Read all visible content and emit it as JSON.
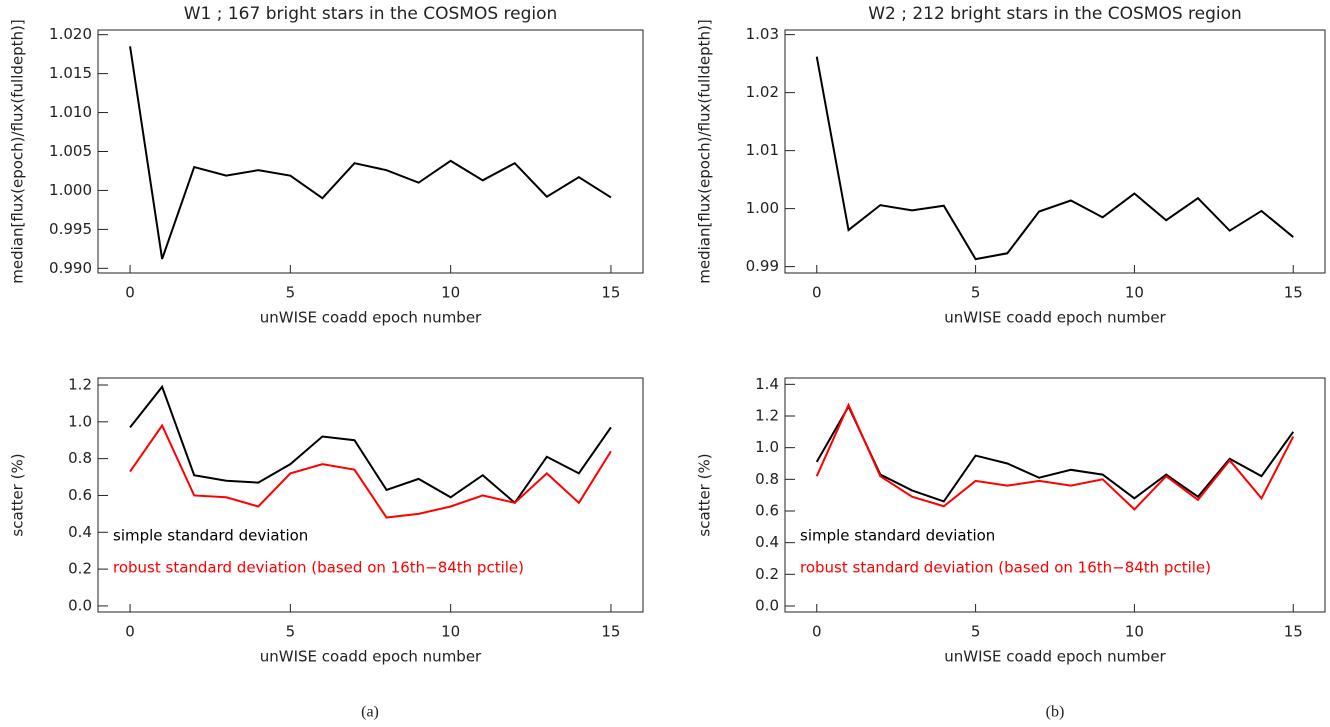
{
  "chart_data": [
    {
      "type": "line",
      "title": "W1 ; 167 bright stars in the COSMOS region",
      "x_label": "unWISE coadd epoch number",
      "y_label": "median[flux(epoch)/flux(fulldepth)]",
      "x": [
        0,
        1,
        2,
        3,
        4,
        5,
        6,
        7,
        8,
        9,
        10,
        11,
        12,
        13,
        14,
        15
      ],
      "series": [
        {
          "color": "#000000",
          "values": [
            1.0185,
            0.9912,
            1.003,
            1.0019,
            1.0026,
            1.0019,
            0.999,
            1.0035,
            1.0026,
            1.001,
            1.0038,
            1.0013,
            1.0035,
            0.9992,
            1.0017,
            0.9991
          ]
        }
      ],
      "xlim": [
        -1,
        16
      ],
      "xticks": [
        0,
        5,
        10,
        15
      ],
      "ylim": [
        0.9894,
        1.0206
      ],
      "yticks": [
        {
          "value": 0.99,
          "label": "0.990"
        },
        0.995,
        {
          "value": 1.0,
          "label": "1.000"
        },
        1.005,
        {
          "value": 1.01,
          "label": "1.010"
        },
        1.015,
        {
          "value": 1.02,
          "label": "1.020"
        }
      ]
    },
    {
      "type": "line",
      "title": "W2 ; 212 bright stars in the COSMOS region",
      "x_label": "unWISE coadd epoch number",
      "y_label": "median[flux(epoch)/flux(fulldepth)]",
      "x": [
        0,
        1,
        2,
        3,
        4,
        5,
        6,
        7,
        8,
        9,
        10,
        11,
        12,
        13,
        14,
        15
      ],
      "series": [
        {
          "color": "#000000",
          "values": [
            1.0262,
            0.9963,
            1.0006,
            0.9997,
            1.0005,
            0.9913,
            0.9923,
            0.9995,
            1.0014,
            0.9985,
            1.0026,
            0.998,
            1.0018,
            0.9962,
            0.9996,
            0.9951
          ]
        }
      ],
      "xlim": [
        -1,
        16
      ],
      "xticks": [
        0,
        5,
        10,
        15
      ],
      "ylim": [
        0.9889,
        1.0308
      ],
      "yticks": [
        0.99,
        {
          "value": 1.0,
          "label": "1.00"
        },
        1.01,
        1.02,
        1.03
      ]
    },
    {
      "type": "line",
      "x_label": "unWISE coadd epoch number",
      "y_label": "scatter (%)",
      "x": [
        0,
        1,
        2,
        3,
        4,
        5,
        6,
        7,
        8,
        9,
        10,
        11,
        12,
        13,
        14,
        15
      ],
      "series": [
        {
          "name": "simple standard deviation",
          "color": "#000000",
          "values": [
            0.97,
            1.19,
            0.71,
            0.68,
            0.67,
            0.77,
            0.92,
            0.9,
            0.63,
            0.69,
            0.59,
            0.71,
            0.56,
            0.81,
            0.72,
            0.97
          ]
        },
        {
          "name": "robust standard deviation (based on 16th−84th pctile)",
          "color": "#ff0000",
          "values": [
            0.73,
            0.98,
            0.6,
            0.59,
            0.54,
            0.72,
            0.77,
            0.74,
            0.48,
            0.5,
            0.54,
            0.6,
            0.56,
            0.72,
            0.56,
            0.84
          ]
        }
      ],
      "xlim": [
        -1,
        16
      ],
      "xticks": [
        0,
        5,
        10,
        15
      ],
      "ylim": [
        -0.033,
        1.238
      ],
      "yticks": [
        {
          "value": 0,
          "label": "0.0"
        },
        0.2,
        0.4,
        0.6,
        0.8,
        {
          "value": 1,
          "label": "1.0"
        },
        1.2
      ]
    },
    {
      "type": "line",
      "x_label": "unWISE coadd epoch number",
      "y_label": "scatter (%)",
      "x": [
        0,
        1,
        2,
        3,
        4,
        5,
        6,
        7,
        8,
        9,
        10,
        11,
        12,
        13,
        14,
        15
      ],
      "series": [
        {
          "name": "simple standard deviation",
          "color": "#000000",
          "values": [
            0.91,
            1.26,
            0.83,
            0.73,
            0.66,
            0.95,
            0.9,
            0.81,
            0.86,
            0.83,
            0.68,
            0.83,
            0.69,
            0.93,
            0.82,
            1.1
          ]
        },
        {
          "name": "robust standard deviation (based on 16th−84th pctile)",
          "color": "#ff0000",
          "values": [
            0.82,
            1.27,
            0.82,
            0.69,
            0.63,
            0.79,
            0.76,
            0.79,
            0.76,
            0.8,
            0.61,
            0.82,
            0.67,
            0.92,
            0.68,
            1.07
          ]
        }
      ],
      "xlim": [
        -1,
        16
      ],
      "xticks": [
        0,
        5,
        10,
        15
      ],
      "ylim": [
        -0.038,
        1.44
      ],
      "yticks": [
        {
          "value": 0,
          "label": "0.0"
        },
        0.2,
        0.4,
        0.6,
        0.8,
        {
          "value": 1,
          "label": "1.0"
        },
        1.2,
        1.4
      ]
    }
  ],
  "captions": [
    "(a)",
    "(b)"
  ]
}
